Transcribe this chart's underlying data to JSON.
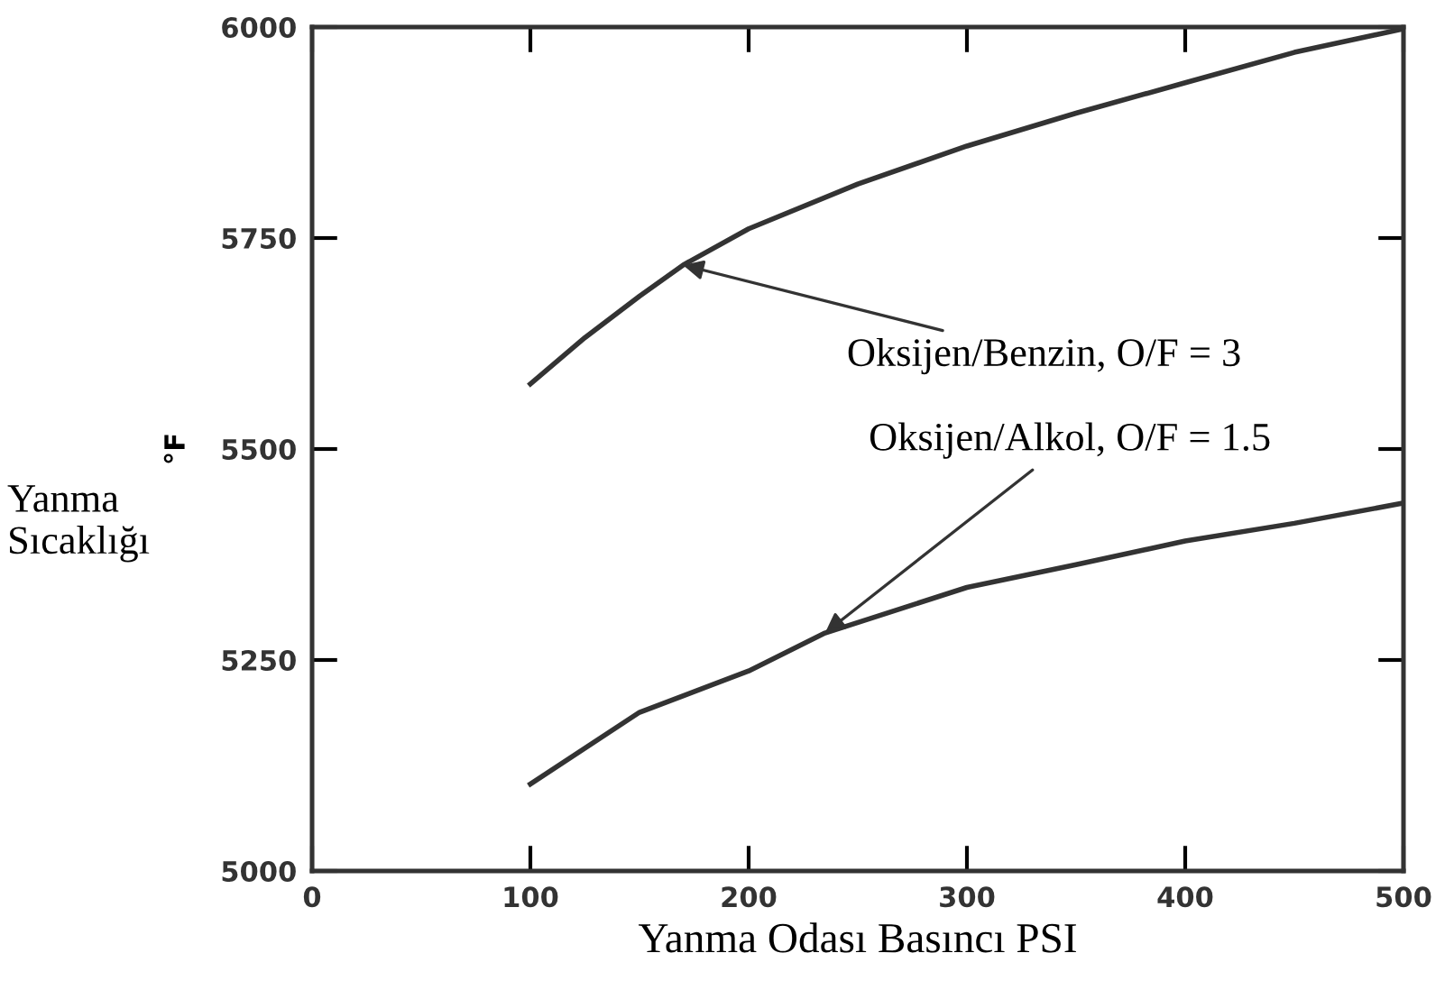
{
  "chart_data": {
    "type": "line",
    "xlabel": "Yanma Odası Basıncı PSI",
    "ylabel": "°F",
    "annotations": [
      {
        "text": "Oksijen/Benzin, O/F = 3",
        "x": 170,
        "y": 5718
      },
      {
        "text": "Oksijen/Alkol, O/F = 1.5",
        "x": 235,
        "y": 5282
      },
      "Yanma\nSıcaklığı"
    ],
    "series": [
      {
        "color": "#333333",
        "x": [
          100,
          125,
          150,
          170,
          200,
          250,
          300,
          350,
          400,
          450,
          500
        ],
        "values": [
          5577,
          5632,
          5681,
          5718,
          5761,
          5814,
          5859,
          5898,
          5934,
          5970,
          5998
        ]
      },
      {
        "color": "#333333",
        "x": [
          100,
          150,
          200,
          235,
          300,
          350,
          400,
          450,
          500
        ],
        "values": [
          5103,
          5188,
          5237,
          5282,
          5336,
          5363,
          5391,
          5412,
          5436
        ]
      }
    ],
    "xlim": [
      0,
      500
    ],
    "ylim": [
      5000,
      6000
    ],
    "xticks": [
      0,
      100,
      200,
      300,
      400,
      500
    ],
    "yticks": [
      5000,
      5250,
      5500,
      5750,
      6000
    ],
    "grid": false,
    "legend": false,
    "marker": "none",
    "line_style": "solid"
  }
}
